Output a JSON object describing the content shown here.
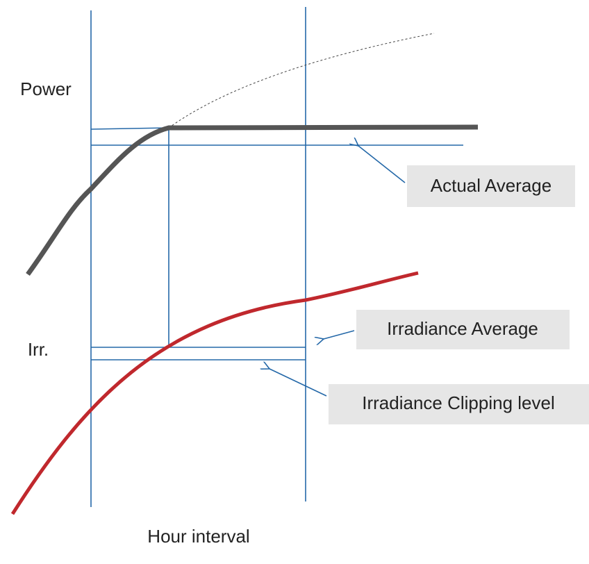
{
  "axes": {
    "power": "Power",
    "irradiance": "Irr.",
    "time": "Hour interval"
  },
  "callouts": {
    "actual_average": "Actual Average",
    "irradiance_average": "Irradiance Average",
    "clipping_level": "Irradiance Clipping level"
  }
}
